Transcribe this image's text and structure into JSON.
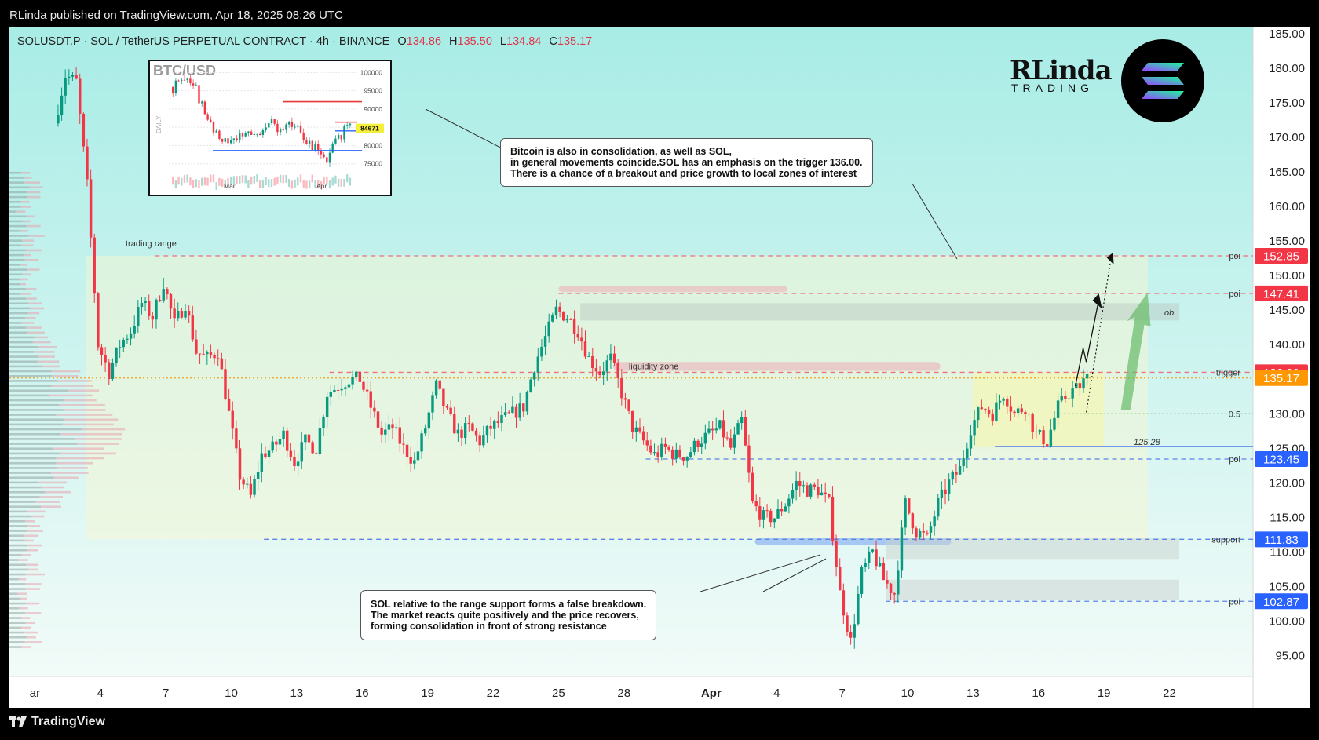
{
  "header": {
    "published": "RLinda published on TradingView.com, Apr 18, 2025 08:26 UTC"
  },
  "footer": {
    "brand": "TradingView",
    "logo_icon": "tradingview-logo-icon"
  },
  "legend": {
    "symbol": "SOLUSDT.P · SOL / TetherUS PERPETUAL CONTRACT · 4h · BINANCE",
    "o_label": "O",
    "o": "134.86",
    "h_label": "H",
    "h": "135.50",
    "l_label": "L",
    "l": "134.84",
    "c_label": "C",
    "c": "135.17"
  },
  "brand": {
    "name": "RLinda",
    "sub": "TRADING",
    "coin_icon": "solana-logo-icon"
  },
  "inset": {
    "title": "BTC/USD",
    "side_label": "DAILY",
    "price_tag": "84671",
    "y_ticks": [
      "100000",
      "95000",
      "90000",
      "85000",
      "80000",
      "75000"
    ],
    "x_ticks": [
      "Mar",
      "Apr"
    ]
  },
  "notes": {
    "bitcoin": [
      "Bitcoin is also in consolidation, as well as SOL,",
      "in general movements coincide.SOL has an emphasis on the trigger 136.00.",
      "There is a chance of a breakout and price growth to local zones of interest"
    ],
    "sol": [
      "SOL relative to the range support forms a false breakdown.",
      "The market reacts quite positively and the price recovers,",
      "forming consolidation in front of strong resistance"
    ]
  },
  "colors": {
    "up": "#089981",
    "down": "#f23645",
    "red_tag": "#f23645",
    "blue_tag": "#2962ff",
    "orange_tag": "#ff9800",
    "bg_top": "#a8ece6",
    "bg_bottom": "#f2fbf8"
  },
  "chart_data": {
    "type": "candlestick",
    "symbol": "SOLUSDT.P",
    "timeframe": "4h",
    "y_axis": {
      "range": [
        92,
        186
      ],
      "ticks": [
        "185.00",
        "180.00",
        "175.00",
        "170.00",
        "165.00",
        "160.00",
        "155.00",
        "150.00",
        "145.00",
        "140.00",
        "135.00",
        "130.00",
        "125.00",
        "120.00",
        "115.00",
        "110.00",
        "105.00",
        "100.00",
        "95.00"
      ]
    },
    "x_axis": {
      "range_days": [
        "2025-03-01",
        "2025-03-24"
      ],
      "ticks": [
        {
          "label": "ar",
          "date": "2025-03-01"
        },
        {
          "label": "4",
          "date": "2025-03-04"
        },
        {
          "label": "7",
          "date": "2025-03-07"
        },
        {
          "label": "10",
          "date": "2025-03-10"
        },
        {
          "label": "13",
          "date": "2025-03-13"
        },
        {
          "label": "16",
          "date": "2025-03-16"
        },
        {
          "label": "19",
          "date": "2025-03-19"
        },
        {
          "label": "22",
          "date": "2025-03-22"
        },
        {
          "label": "25",
          "date": "2025-03-25"
        },
        {
          "label": "28",
          "date": "2025-03-28"
        },
        {
          "label": "Apr",
          "date": "2025-04-01"
        },
        {
          "label": "4",
          "date": "2025-04-04"
        },
        {
          "label": "7",
          "date": "2025-04-07"
        },
        {
          "label": "10",
          "date": "2025-04-10"
        },
        {
          "label": "13",
          "date": "2025-04-13"
        },
        {
          "label": "16",
          "date": "2025-04-16"
        },
        {
          "label": "19",
          "date": "2025-04-19"
        },
        {
          "label": "22",
          "date": "2025-04-22"
        }
      ]
    },
    "price_path": [
      [
        "2025-03-02T00",
        172
      ],
      [
        "2025-03-02T12",
        179
      ],
      [
        "2025-03-03T00",
        178
      ],
      [
        "2025-03-03T12",
        163
      ],
      [
        "2025-03-04T00",
        140
      ],
      [
        "2025-03-04T12",
        136
      ],
      [
        "2025-03-05T00",
        140
      ],
      [
        "2025-03-05T12",
        142
      ],
      [
        "2025-03-06T00",
        146
      ],
      [
        "2025-03-06T12",
        144
      ],
      [
        "2025-03-07T00",
        149
      ],
      [
        "2025-03-07T12",
        143
      ],
      [
        "2025-03-08T00",
        146
      ],
      [
        "2025-03-08T12",
        139
      ],
      [
        "2025-03-09T00",
        138
      ],
      [
        "2025-03-09T12",
        139
      ],
      [
        "2025-03-10T00",
        130
      ],
      [
        "2025-03-10T12",
        121
      ],
      [
        "2025-03-11T00",
        118
      ],
      [
        "2025-03-11T12",
        124
      ],
      [
        "2025-03-12T00",
        125
      ],
      [
        "2025-03-12T12",
        127
      ],
      [
        "2025-03-13T00",
        123
      ],
      [
        "2025-03-13T12",
        126
      ],
      [
        "2025-03-14T00",
        125
      ],
      [
        "2025-03-14T12",
        133
      ],
      [
        "2025-03-15T00",
        134
      ],
      [
        "2025-03-15T12",
        135
      ],
      [
        "2025-03-16T00",
        135
      ],
      [
        "2025-03-16T12",
        131
      ],
      [
        "2025-03-17T00",
        127
      ],
      [
        "2025-03-17T12",
        128
      ],
      [
        "2025-03-18T00",
        125
      ],
      [
        "2025-03-18T12",
        123
      ],
      [
        "2025-03-19T00",
        128
      ],
      [
        "2025-03-19T12",
        134
      ],
      [
        "2025-03-20T00",
        130
      ],
      [
        "2025-03-20T12",
        127
      ],
      [
        "2025-03-21T00",
        128
      ],
      [
        "2025-03-21T12",
        126
      ],
      [
        "2025-03-22T00",
        128
      ],
      [
        "2025-03-22T12",
        129
      ],
      [
        "2025-03-23T00",
        130
      ],
      [
        "2025-03-23T12",
        131
      ],
      [
        "2025-03-24T00",
        137
      ],
      [
        "2025-03-24T12",
        141
      ],
      [
        "2025-03-25T00",
        145
      ],
      [
        "2025-03-25T12",
        144
      ],
      [
        "2025-03-26T00",
        142
      ],
      [
        "2025-03-26T12",
        138
      ],
      [
        "2025-03-27T00",
        136
      ],
      [
        "2025-03-27T12",
        138
      ],
      [
        "2025-03-28T00",
        133
      ],
      [
        "2025-03-28T12",
        128
      ],
      [
        "2025-03-29T00",
        126
      ],
      [
        "2025-03-29T12",
        124
      ],
      [
        "2025-03-30T00",
        125
      ],
      [
        "2025-03-30T12",
        124
      ],
      [
        "2025-03-31T00",
        124
      ],
      [
        "2025-03-31T12",
        126
      ],
      [
        "2025-04-01T00",
        127
      ],
      [
        "2025-04-01T12",
        128
      ],
      [
        "2025-04-02T00",
        125
      ],
      [
        "2025-04-02T12",
        129
      ],
      [
        "2025-04-03T00",
        117
      ],
      [
        "2025-04-03T12",
        115
      ],
      [
        "2025-04-04T00",
        115
      ],
      [
        "2025-04-04T12",
        117
      ],
      [
        "2025-04-05T00",
        120
      ],
      [
        "2025-04-05T12",
        119
      ],
      [
        "2025-04-06T00",
        119
      ],
      [
        "2025-04-06T12",
        117
      ],
      [
        "2025-04-07T00",
        104
      ],
      [
        "2025-04-07T12",
        97
      ],
      [
        "2025-04-08T00",
        107
      ],
      [
        "2025-04-08T12",
        110
      ],
      [
        "2025-04-09T00",
        106
      ],
      [
        "2025-04-09T12",
        104
      ],
      [
        "2025-04-10T00",
        117
      ],
      [
        "2025-04-10T12",
        113
      ],
      [
        "2025-04-11T00",
        112
      ],
      [
        "2025-04-11T12",
        117
      ],
      [
        "2025-04-12T00",
        120
      ],
      [
        "2025-04-12T12",
        122
      ],
      [
        "2025-04-13T00",
        128
      ],
      [
        "2025-04-13T12",
        131
      ],
      [
        "2025-04-14T00",
        130
      ],
      [
        "2025-04-14T12",
        133
      ],
      [
        "2025-04-15T00",
        130
      ],
      [
        "2025-04-15T12",
        131
      ],
      [
        "2025-04-16T00",
        127
      ],
      [
        "2025-04-16T12",
        126
      ],
      [
        "2025-04-17T00",
        131
      ],
      [
        "2025-04-17T12",
        133
      ],
      [
        "2025-04-18T00",
        134
      ],
      [
        "2025-04-18T08",
        135.17
      ]
    ],
    "levels": [
      {
        "name": "poi",
        "value": 152.85,
        "tag": "152.85",
        "tag_color": "red",
        "style": "dashed-red"
      },
      {
        "name": "poi",
        "value": 147.41,
        "tag": "147.41",
        "tag_color": "red",
        "style": "dashed-red"
      },
      {
        "name": "trigger",
        "value": 136.0,
        "tag": "136.00",
        "tag_color": "red",
        "style": "dashed-red"
      },
      {
        "name": "",
        "value": 135.17,
        "tag": "135.17",
        "tag_color": "orange",
        "style": "dotted-orange"
      },
      {
        "name": "0.5",
        "value": 130.0,
        "tag": "",
        "tag_color": "",
        "style": "dotted-green"
      },
      {
        "name": "",
        "value": 125.28,
        "tag": "",
        "tag_color": "",
        "style": "solid-blue",
        "inline_label": "125.28"
      },
      {
        "name": "poi",
        "value": 123.45,
        "tag": "123.45",
        "tag_color": "blue",
        "style": "dashed-blue"
      },
      {
        "name": "support",
        "value": 111.83,
        "tag": "111.83",
        "tag_color": "blue",
        "style": "dashed-blue"
      },
      {
        "name": "poi",
        "value": 102.87,
        "tag": "102.87",
        "tag_color": "blue",
        "style": "dashed-blue"
      }
    ],
    "zones": [
      {
        "label": "trading range",
        "top": 152.85,
        "bottom": 111.83
      },
      {
        "label": "ob",
        "top": 146,
        "bottom": 143.5
      },
      {
        "label": "liquidity zone",
        "top": 137.5,
        "bottom": 136.2
      },
      {
        "label": "",
        "top": 148.5,
        "bottom": 147.6
      },
      {
        "label": "",
        "top": 111.8,
        "bottom": 111.0
      },
      {
        "label": "",
        "top": 112,
        "bottom": 109
      },
      {
        "label": "",
        "top": 106,
        "bottom": 103
      }
    ]
  }
}
